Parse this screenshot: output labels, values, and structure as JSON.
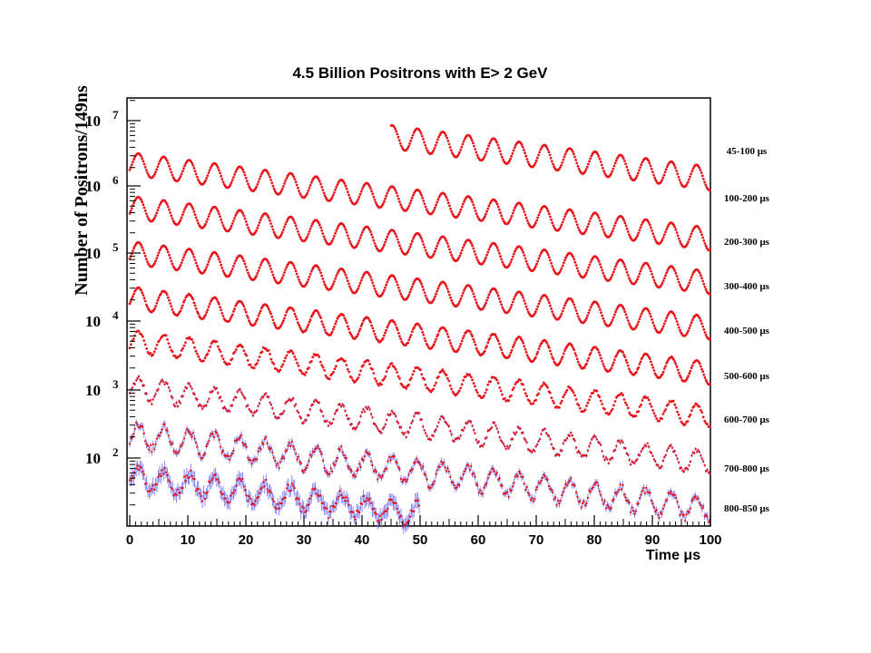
{
  "chart_data": {
    "type": "scatter",
    "title": "4.5 Billion Positrons with E> 2  GeV",
    "xlabel": "Time μs",
    "ylabel": "Number of Positrons/149ns",
    "xlim": [
      0,
      100
    ],
    "x_ticks": [
      "0",
      "10",
      "20",
      "30",
      "40",
      "50",
      "60",
      "70",
      "80",
      "90",
      "100"
    ],
    "y_scale": "log (rows vertically offset)",
    "y_ticks": [
      {
        "base": "10",
        "exp": "7"
      },
      {
        "base": "10",
        "exp": "6"
      },
      {
        "base": "10",
        "exp": "5"
      },
      {
        "base": "10",
        "exp": "4"
      },
      {
        "base": "10",
        "exp": "3"
      },
      {
        "base": "10",
        "exp": "2"
      }
    ],
    "wiggle_period_us": 4.37,
    "series": [
      {
        "name": "45-100 μs",
        "x_range": [
          45,
          100
        ]
      },
      {
        "name": "100-200 μs",
        "x_range": [
          0,
          100
        ]
      },
      {
        "name": "200-300 μs",
        "x_range": [
          0,
          100
        ]
      },
      {
        "name": "300-400 μs",
        "x_range": [
          0,
          100
        ]
      },
      {
        "name": "400-500 μs",
        "x_range": [
          0,
          100
        ]
      },
      {
        "name": "500-600 μs",
        "x_range": [
          0,
          100
        ]
      },
      {
        "name": "600-700 μs",
        "x_range": [
          0,
          100
        ]
      },
      {
        "name": "700-800 μs",
        "x_range": [
          0,
          100
        ]
      },
      {
        "name": "800-850 μs",
        "x_range": [
          0,
          50
        ]
      }
    ],
    "grid": false,
    "colors": {
      "points": "#e8141b",
      "error_bars": "#6e6ef0"
    }
  }
}
